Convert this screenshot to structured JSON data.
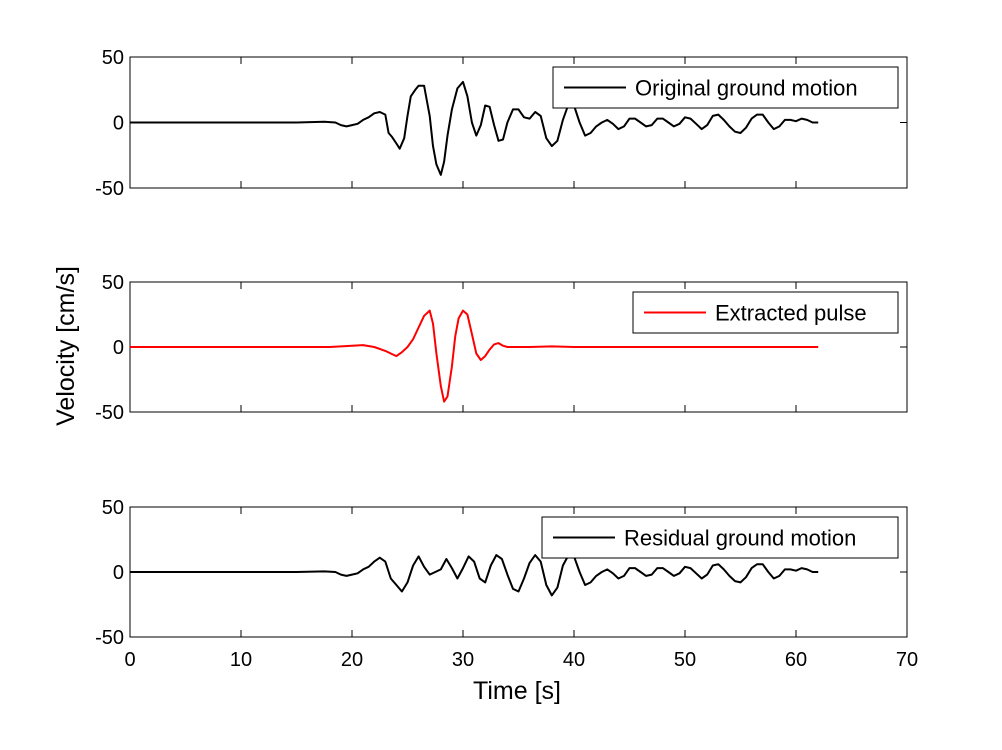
{
  "figure": {
    "ylabel": "Velocity [cm/s]",
    "xlabel": "Time [s]",
    "xlim": [
      0,
      70
    ],
    "xticks": [
      "0",
      "10",
      "20",
      "30",
      "40",
      "50",
      "60",
      "70"
    ]
  },
  "chart_data": [
    {
      "type": "line",
      "legend_placement": "top-right",
      "grid": false,
      "ylim": [
        -50,
        50
      ],
      "yticks": [
        "50",
        "0",
        "-50"
      ],
      "series": [
        {
          "name": "Original ground motion",
          "color": "#000000",
          "x": [
            0,
            5,
            10,
            15,
            17.5,
            18.5,
            19,
            19.5,
            20,
            20.5,
            21,
            21.5,
            22,
            22.5,
            23,
            23.3,
            23.6,
            24,
            24.3,
            24.7,
            25,
            25.3,
            25.7,
            26,
            26.5,
            27,
            27.3,
            27.6,
            28,
            28.3,
            28.6,
            29,
            29.5,
            30,
            30.4,
            30.8,
            31.2,
            31.6,
            32,
            32.4,
            32.8,
            33.2,
            33.6,
            34,
            34.5,
            35,
            35.5,
            36,
            36.5,
            37,
            37.5,
            38,
            38.5,
            39,
            39.5,
            40,
            40.5,
            41,
            41.5,
            42,
            42.5,
            43,
            43.5,
            44,
            44.5,
            45,
            45.5,
            46,
            46.5,
            47,
            47.5,
            48,
            48.5,
            49,
            49.5,
            50,
            50.5,
            51,
            51.5,
            52,
            52.5,
            53,
            53.5,
            54,
            54.5,
            55,
            55.5,
            56,
            56.5,
            57,
            57.5,
            58,
            58.5,
            59,
            59.5,
            60,
            60.5,
            61,
            61.5,
            62
          ],
          "y": [
            0,
            0,
            0,
            0,
            0.5,
            0,
            -2,
            -3,
            -2,
            -1,
            2,
            4,
            7,
            8,
            6,
            -8,
            -11,
            -16,
            -20,
            -12,
            5,
            20,
            25,
            28,
            28,
            5,
            -18,
            -32,
            -40,
            -30,
            -10,
            10,
            26,
            31,
            20,
            0,
            -10,
            -2,
            13,
            12,
            -2,
            -14,
            -13,
            0,
            10,
            10,
            4,
            3,
            8,
            5,
            -12,
            -18,
            -14,
            2,
            14,
            13,
            0,
            -10,
            -8,
            -3,
            0,
            2,
            -1,
            -5,
            -3,
            3,
            3,
            0,
            -3,
            -2,
            3,
            3,
            0,
            -3,
            -1,
            4,
            3,
            -1,
            -5,
            -2,
            5,
            6,
            2,
            -3,
            -7,
            -8,
            -4,
            3,
            6,
            6,
            0,
            -5,
            -3,
            2,
            2,
            1,
            3,
            2,
            0,
            0
          ],
          "point_count": 100
        }
      ]
    },
    {
      "type": "line",
      "legend_placement": "top-right",
      "grid": false,
      "ylim": [
        -50,
        50
      ],
      "yticks": [
        "50",
        "0",
        "-50"
      ],
      "series": [
        {
          "name": "Extracted pulse",
          "color": "#ff0000",
          "x": [
            0,
            10,
            18,
            19,
            20,
            21,
            22,
            23,
            23.5,
            24,
            24.5,
            25,
            25.5,
            26,
            26.5,
            27,
            27.3,
            27.6,
            28,
            28.3,
            28.6,
            29,
            29.3,
            29.6,
            30,
            30.4,
            30.8,
            31.2,
            31.6,
            32,
            32.4,
            32.8,
            33.2,
            33.6,
            34,
            35,
            36,
            38,
            40,
            50,
            62
          ],
          "y": [
            0,
            0,
            0,
            0.5,
            1,
            1.5,
            0,
            -3,
            -5,
            -7,
            -4,
            0,
            6,
            15,
            24,
            28,
            18,
            -5,
            -30,
            -42,
            -38,
            -15,
            8,
            22,
            28,
            25,
            10,
            -5,
            -10,
            -7,
            -2,
            2,
            3,
            1,
            0,
            0,
            0,
            0.5,
            0,
            0,
            0
          ],
          "point_count": 41
        }
      ]
    },
    {
      "type": "line",
      "legend_placement": "top-right",
      "grid": false,
      "ylim": [
        -50,
        50
      ],
      "yticks": [
        "50",
        "0",
        "-50"
      ],
      "series": [
        {
          "name": "Residual ground motion",
          "color": "#000000",
          "x": [
            0,
            5,
            10,
            15,
            17.5,
            18.5,
            19,
            19.5,
            20,
            20.5,
            21,
            21.5,
            22,
            22.5,
            23,
            23.5,
            24,
            24.5,
            25,
            25.5,
            26,
            26.5,
            27,
            27.5,
            28,
            28.5,
            29,
            29.5,
            30,
            30.5,
            31,
            31.5,
            32,
            32.5,
            33,
            33.5,
            34,
            34.5,
            35,
            35.5,
            36,
            36.5,
            37,
            37.5,
            38,
            38.5,
            39,
            39.5,
            40,
            40.5,
            41,
            41.5,
            42,
            42.5,
            43,
            43.5,
            44,
            44.5,
            45,
            45.5,
            46,
            46.5,
            47,
            47.5,
            48,
            48.5,
            49,
            49.5,
            50,
            50.5,
            51,
            51.5,
            52,
            52.5,
            53,
            53.5,
            54,
            54.5,
            55,
            55.5,
            56,
            56.5,
            57,
            57.5,
            58,
            58.5,
            59,
            59.5,
            60,
            60.5,
            61,
            61.5,
            62
          ],
          "y": [
            0,
            0,
            0,
            0,
            0.5,
            0,
            -2,
            -3,
            -2,
            -1,
            2,
            4,
            8,
            11,
            8,
            -5,
            -10,
            -15,
            -8,
            5,
            12,
            4,
            -2,
            0,
            2,
            10,
            3,
            -5,
            3,
            12,
            8,
            -5,
            -8,
            5,
            13,
            10,
            -2,
            -13,
            -15,
            -5,
            7,
            13,
            8,
            -10,
            -18,
            -12,
            5,
            13,
            12,
            0,
            -10,
            -8,
            -3,
            0,
            2,
            -1,
            -5,
            -3,
            3,
            3,
            0,
            -3,
            -2,
            3,
            3,
            0,
            -3,
            -1,
            4,
            3,
            -1,
            -5,
            -2,
            5,
            6,
            2,
            -3,
            -7,
            -8,
            -4,
            3,
            6,
            6,
            0,
            -5,
            -3,
            2,
            2,
            1,
            3,
            2,
            0,
            0
          ],
          "point_count": 93
        }
      ]
    }
  ]
}
